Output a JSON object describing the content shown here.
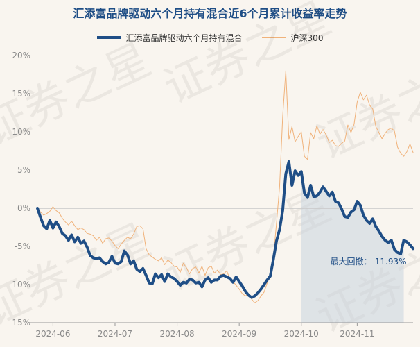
{
  "chart_data": {
    "type": "line",
    "title": "汇添富品牌驱动六个月持有混合近6个月累计收益率走势",
    "xlabel": "",
    "ylabel": "",
    "ylim": [
      -15,
      20
    ],
    "yticks": [
      "20%",
      "15%",
      "10%",
      "5%",
      "0%",
      "-5%",
      "-10%",
      "-15%"
    ],
    "yticks_values": [
      20,
      15,
      10,
      5,
      0,
      -5,
      -10,
      -15
    ],
    "x_range": [
      0,
      121
    ],
    "xticks": [
      {
        "label": "2024-06",
        "x": 5
      },
      {
        "label": "2024-07",
        "x": 25
      },
      {
        "label": "2024-08",
        "x": 45
      },
      {
        "label": "2024-09",
        "x": 65
      },
      {
        "label": "2024-10",
        "x": 85
      },
      {
        "label": "2024-11",
        "x": 103
      }
    ],
    "grid": false,
    "legend_position": "top-center",
    "series": [
      {
        "name": "汇添富品牌驱动六个月持有混合",
        "color": "#1f4e86",
        "x": [
          0,
          1,
          2,
          3,
          4,
          5,
          6,
          7,
          8,
          9,
          10,
          11,
          12,
          13,
          14,
          15,
          16,
          17,
          18,
          19,
          20,
          21,
          22,
          23,
          24,
          25,
          26,
          27,
          28,
          29,
          30,
          31,
          32,
          33,
          34,
          35,
          36,
          37,
          38,
          39,
          40,
          41,
          42,
          43,
          44,
          45,
          46,
          47,
          48,
          49,
          50,
          51,
          52,
          53,
          54,
          55,
          56,
          57,
          58,
          59,
          60,
          61,
          62,
          63,
          64,
          65,
          66,
          67,
          68,
          69,
          70,
          71,
          72,
          73,
          74,
          75,
          76,
          77,
          78,
          79,
          80,
          81,
          82,
          83,
          84,
          85,
          86,
          87,
          88,
          89,
          90,
          91,
          92,
          93,
          94,
          95,
          96,
          97,
          98,
          99,
          100,
          101,
          102,
          103,
          104,
          105,
          106,
          107,
          108,
          109,
          110,
          111,
          112,
          113,
          114,
          115,
          116,
          117,
          118,
          119,
          120,
          121
        ],
        "values": [
          0,
          -1.2,
          -2.3,
          -2.7,
          -1.6,
          -2.6,
          -1.8,
          -2.4,
          -3.3,
          -3.6,
          -4.2,
          -3.5,
          -4.4,
          -3.8,
          -4.6,
          -4.3,
          -5.1,
          -6.2,
          -6.5,
          -6.6,
          -6.5,
          -7.0,
          -7.3,
          -7.1,
          -6.3,
          -7.2,
          -7.3,
          -7.0,
          -5.6,
          -6.1,
          -7.3,
          -6.9,
          -8.0,
          -8.3,
          -7.9,
          -8.8,
          -9.8,
          -9.9,
          -8.6,
          -9.1,
          -8.7,
          -9.6,
          -8.6,
          -9.0,
          -9.2,
          -9.6,
          -10.1,
          -9.7,
          -9.8,
          -9.3,
          -9.4,
          -9.8,
          -9.7,
          -10.3,
          -9.4,
          -9.1,
          -9.7,
          -9.4,
          -9.4,
          -8.9,
          -8.8,
          -9.0,
          -9.2,
          -9.7,
          -9.0,
          -9.6,
          -10.2,
          -10.9,
          -11.4,
          -11.7,
          -11.5,
          -11.1,
          -10.6,
          -10.0,
          -9.4,
          -8.9,
          -6.7,
          -4.3,
          -2.8,
          -0.3,
          4.5,
          6.1,
          3.0,
          4.9,
          4.3,
          4.8,
          2.0,
          1.4,
          3.0,
          1.5,
          1.6,
          2.1,
          2.8,
          2.2,
          1.6,
          2.1,
          0.9,
          0.7,
          -0.1,
          -1.1,
          -1.2,
          -0.5,
          -0.2,
          0.9,
          0.4,
          -0.9,
          -1.6,
          -2.0,
          -1.4,
          -2.4,
          -3.0,
          -3.7,
          -4.2,
          -4.5,
          -4.2,
          -5.4,
          -5.8,
          -6.0,
          -4.2,
          -4.4,
          -4.8,
          -5.3
        ],
        "linewidth": 4
      },
      {
        "name": "沪深300",
        "color": "#f0b27a",
        "x": [
          0,
          1,
          2,
          3,
          4,
          5,
          6,
          7,
          8,
          9,
          10,
          11,
          12,
          13,
          14,
          15,
          16,
          17,
          18,
          19,
          20,
          21,
          22,
          23,
          24,
          25,
          26,
          27,
          28,
          29,
          30,
          31,
          32,
          33,
          34,
          35,
          36,
          37,
          38,
          39,
          40,
          41,
          42,
          43,
          44,
          45,
          46,
          47,
          48,
          49,
          50,
          51,
          52,
          53,
          54,
          55,
          56,
          57,
          58,
          59,
          60,
          61,
          62,
          63,
          64,
          65,
          66,
          67,
          68,
          69,
          70,
          71,
          72,
          73,
          74,
          75,
          76,
          77,
          78,
          79,
          80,
          81,
          82,
          83,
          84,
          85,
          86,
          87,
          88,
          89,
          90,
          91,
          92,
          93,
          94,
          95,
          96,
          97,
          98,
          99,
          100,
          101,
          102,
          103,
          104,
          105,
          106,
          107,
          108,
          109,
          110,
          111,
          112,
          113,
          114,
          115,
          116,
          117,
          118,
          119,
          120,
          121
        ],
        "values": [
          0,
          -0.5,
          -0.9,
          -0.7,
          -0.4,
          0.2,
          -0.3,
          -0.6,
          -1.3,
          -1.8,
          -2.2,
          -1.7,
          -2.3,
          -2.8,
          -2.6,
          -2.8,
          -3.3,
          -3.4,
          -3.6,
          -4.2,
          -3.8,
          -4.6,
          -4.0,
          -3.9,
          -4.3,
          -4.9,
          -5.3,
          -4.7,
          -4.2,
          -3.8,
          -4.0,
          -3.4,
          -2.4,
          -2.3,
          -2.7,
          -5.3,
          -6.1,
          -6.4,
          -6.7,
          -6.9,
          -6.5,
          -7.4,
          -6.8,
          -7.1,
          -7.6,
          -7.7,
          -8.4,
          -7.2,
          -7.8,
          -8.6,
          -7.9,
          -7.7,
          -8.5,
          -7.6,
          -8.8,
          -7.8,
          -7.6,
          -8.5,
          -8.1,
          -8.7,
          -8.6,
          -8.2,
          -9.3,
          -9.6,
          -10.1,
          -10.6,
          -11.2,
          -11.5,
          -11.2,
          -11.9,
          -12.4,
          -12.1,
          -11.5,
          -11.0,
          -9.8,
          -8.7,
          -6.5,
          -2.0,
          2.8,
          12.0,
          18.0,
          9.0,
          10.7,
          8.7,
          9.4,
          10.0,
          6.8,
          6.4,
          9.9,
          9.1,
          10.8,
          9.7,
          10.3,
          9.6,
          8.6,
          8.9,
          8.2,
          8.1,
          8.5,
          8.8,
          10.9,
          9.9,
          11.0,
          13.9,
          15.2,
          14.2,
          14.8,
          13.5,
          13.0,
          10.7,
          9.9,
          9.1,
          9.8,
          10.3,
          10.5,
          10.1,
          8.0,
          7.2,
          6.8,
          7.4,
          8.4,
          7.3
        ],
        "linewidth": 1
      }
    ],
    "annotation": {
      "text": "最大回撤：-11.93%",
      "shade_x": [
        85,
        118
      ],
      "peak_value": 6.1,
      "trough_value": -5.8
    }
  },
  "watermark": "证券之星"
}
